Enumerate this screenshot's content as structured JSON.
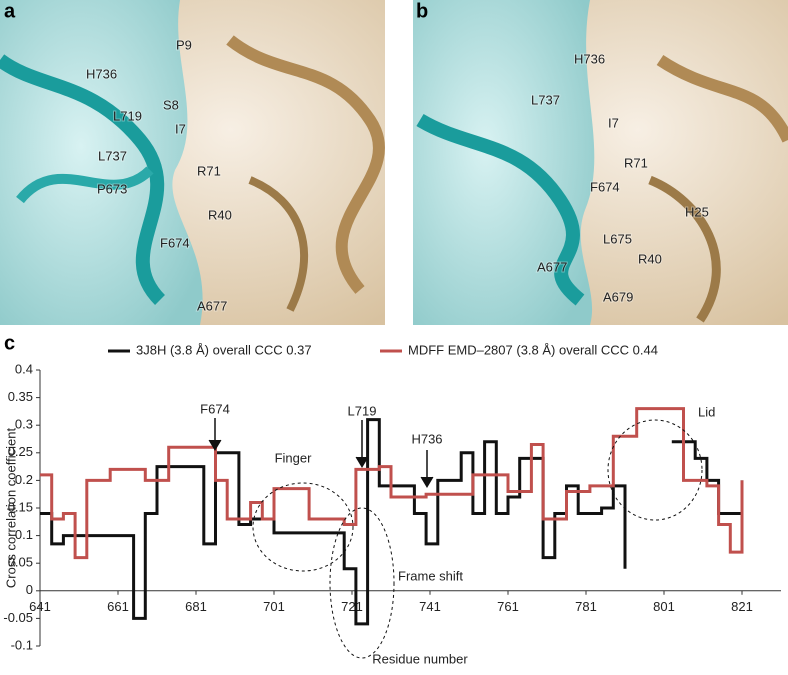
{
  "panel_a": {
    "label": "a",
    "residues": [
      "P9",
      "H736",
      "S8",
      "L719",
      "I7",
      "L737",
      "R71",
      "P673",
      "R40",
      "F674",
      "A677"
    ]
  },
  "panel_b": {
    "label": "b",
    "residues": [
      "H736",
      "L737",
      "I7",
      "R71",
      "F674",
      "H25",
      "L675",
      "R40",
      "A677",
      "A679"
    ]
  },
  "panel_c": {
    "label": "c"
  },
  "chart_data": {
    "type": "line",
    "step": true,
    "x_label": "Residue number",
    "y_label": "Cross correlation coefficient",
    "xlim": [
      641,
      831
    ],
    "xticks": [
      641,
      661,
      681,
      701,
      721,
      741,
      761,
      781,
      801,
      821
    ],
    "ylim": [
      -0.1,
      0.4
    ],
    "yticks": [
      -0.1,
      -0.05,
      0,
      0.05,
      0.1,
      0.15,
      0.2,
      0.25,
      0.3,
      0.35,
      0.4
    ],
    "annotations": [
      "F674",
      "L719",
      "H736",
      "Finger",
      "Frame shift",
      "Lid"
    ],
    "x": [
      641,
      644,
      647,
      650,
      653,
      656,
      659,
      662,
      665,
      668,
      671,
      674,
      677,
      680,
      683,
      686,
      689,
      692,
      695,
      698,
      701,
      704,
      707,
      710,
      713,
      716,
      719,
      722,
      725,
      728,
      731,
      734,
      737,
      740,
      743,
      746,
      749,
      752,
      755,
      758,
      761,
      764,
      767,
      770,
      773,
      776,
      779,
      782,
      785,
      788,
      791,
      794,
      797,
      800,
      803,
      806,
      809,
      812,
      815,
      818,
      821
    ],
    "series": [
      {
        "name": "3J8H (3.8 Å) overall CCC 0.37",
        "color": "#111111",
        "values": [
          0.14,
          0.085,
          0.1,
          0.1,
          0.1,
          0.1,
          0.1,
          0.1,
          -0.05,
          0.14,
          0.225,
          0.225,
          0.225,
          0.225,
          0.085,
          0.25,
          0.25,
          0.12,
          0.13,
          0.13,
          0.105,
          0.105,
          0.105,
          0.105,
          0.105,
          0.105,
          0.04,
          -0.06,
          0.31,
          0.19,
          0.19,
          0.19,
          0.14,
          0.085,
          0.2,
          0.2,
          0.25,
          0.14,
          0.27,
          0.14,
          0.17,
          0.24,
          0.24,
          0.06,
          0.14,
          0.19,
          0.14,
          0.14,
          0.15,
          0.19,
          0.04,
          null,
          null,
          null,
          0.27,
          0.27,
          0.24,
          0.2,
          0.14,
          0.14,
          0.2
        ]
      },
      {
        "name": "MDFF EMD–2807 (3.8 Å) overall CCC 0.44",
        "color": "#c0504d",
        "values": [
          0.21,
          0.13,
          0.14,
          0.06,
          0.2,
          0.2,
          0.22,
          0.22,
          0.22,
          0.2,
          0.2,
          0.26,
          0.26,
          0.26,
          0.26,
          0.2,
          0.13,
          0.13,
          0.16,
          0.13,
          0.185,
          0.185,
          0.185,
          0.13,
          0.13,
          0.13,
          0.12,
          0.22,
          0.22,
          0.225,
          0.17,
          0.17,
          0.17,
          0.175,
          0.175,
          0.175,
          0.175,
          0.21,
          0.21,
          0.21,
          0.18,
          0.18,
          0.265,
          0.13,
          0.13,
          0.18,
          0.18,
          0.19,
          0.19,
          0.28,
          0.28,
          0.33,
          0.33,
          0.33,
          0.33,
          0.2,
          0.2,
          0.19,
          0.12,
          0.07,
          0.2
        ]
      }
    ]
  }
}
